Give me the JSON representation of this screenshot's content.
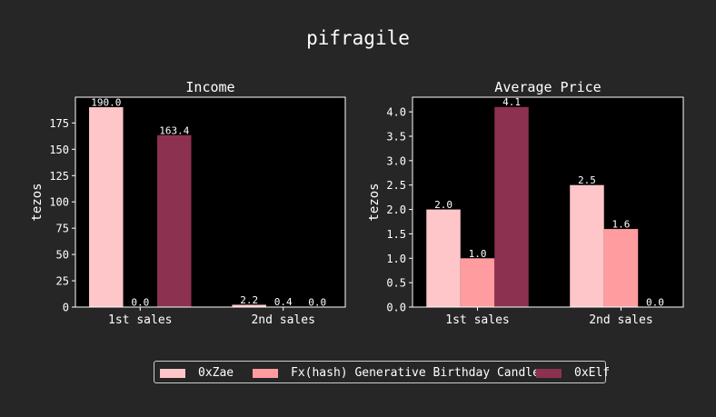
{
  "figure_title": "pifragile",
  "colors": {
    "background": "#262626",
    "plot_background": "#000000",
    "text": "#ffffff",
    "series": [
      "#ffc6c9",
      "#ff9ca0",
      "#8c3150"
    ]
  },
  "legend": {
    "items": [
      "0xZae",
      "Fx(hash) Generative Birthday Candle",
      "0xElf"
    ]
  },
  "chart_data": [
    {
      "type": "bar",
      "title": "Income",
      "xlabel": "",
      "ylabel": "tezos",
      "categories": [
        "1st sales",
        "2nd sales"
      ],
      "ylim": [
        0,
        199.5
      ],
      "yticks": [
        0,
        25,
        50,
        75,
        100,
        125,
        150,
        175
      ],
      "ytick_labels": [
        "0",
        "25",
        "50",
        "75",
        "100",
        "125",
        "150",
        "175"
      ],
      "series": [
        {
          "name": "0xZae",
          "values": [
            190.0,
            2.2
          ],
          "labels": [
            "190.0",
            "2.2"
          ]
        },
        {
          "name": "Fx(hash) Generative Birthday Candle",
          "values": [
            0.0,
            0.4
          ],
          "labels": [
            "0.0",
            "0.4"
          ]
        },
        {
          "name": "0xElf",
          "values": [
            163.4,
            0.0
          ],
          "labels": [
            "163.4",
            "0.0"
          ]
        }
      ]
    },
    {
      "type": "bar",
      "title": "Average Price",
      "xlabel": "",
      "ylabel": "tezos",
      "categories": [
        "1st sales",
        "2nd sales"
      ],
      "ylim": [
        0,
        4.3
      ],
      "yticks": [
        0,
        0.5,
        1.0,
        1.5,
        2.0,
        2.5,
        3.0,
        3.5,
        4.0
      ],
      "ytick_labels": [
        "0.0",
        "0.5",
        "1.0",
        "1.5",
        "2.0",
        "2.5",
        "3.0",
        "3.5",
        "4.0"
      ],
      "series": [
        {
          "name": "0xZae",
          "values": [
            2.0,
            2.5
          ],
          "labels": [
            "2.0",
            "2.5"
          ]
        },
        {
          "name": "Fx(hash) Generative Birthday Candle",
          "values": [
            1.0,
            1.6
          ],
          "labels": [
            "1.0",
            "1.6"
          ]
        },
        {
          "name": "0xElf",
          "values": [
            4.1,
            0.0
          ],
          "labels": [
            "4.1",
            "0.0"
          ]
        }
      ]
    }
  ]
}
